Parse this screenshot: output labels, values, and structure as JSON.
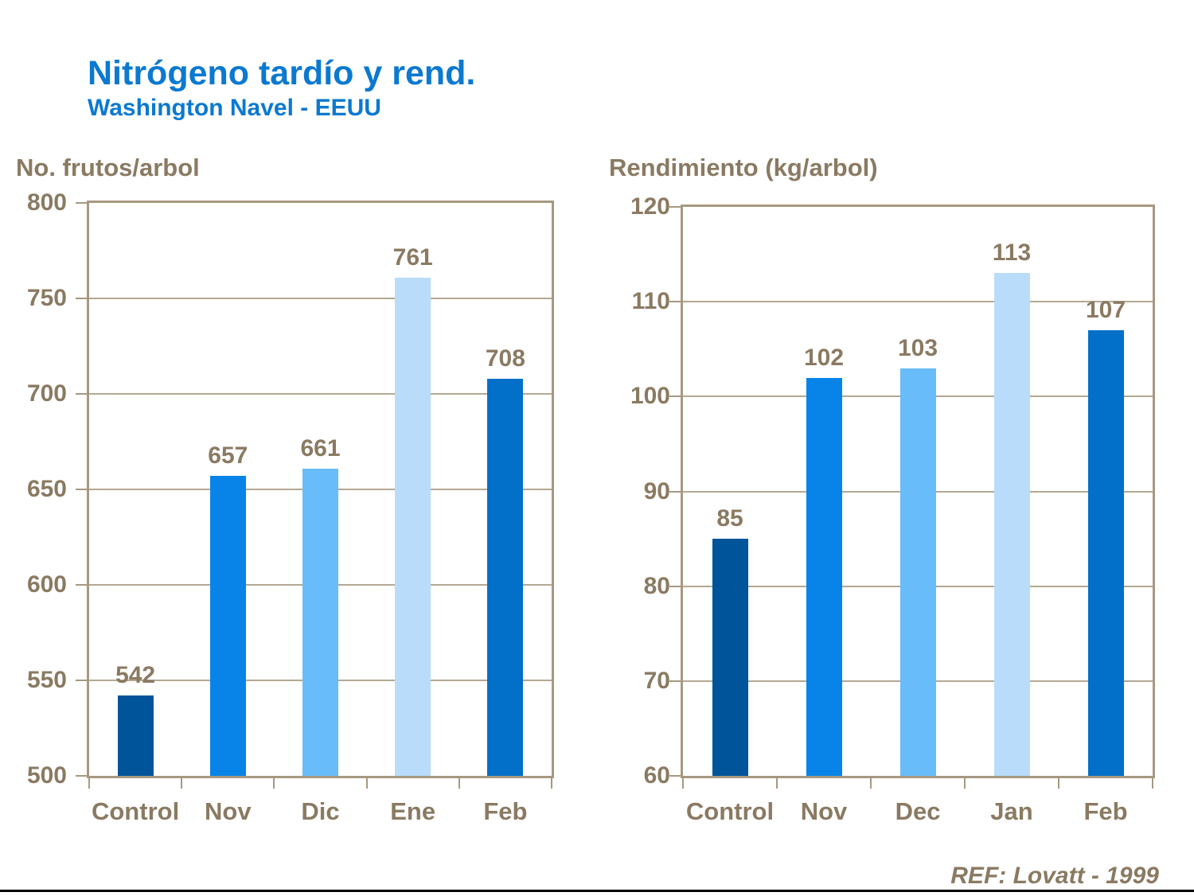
{
  "header": {
    "title": "Nitrógeno tardío y rend.",
    "subtitle": "Washington Navel - EEUU"
  },
  "footer": {
    "ref": "REF: Lovatt - 1999"
  },
  "colors": {
    "title": "#0b79d0",
    "text": "#8a7a62",
    "axis": "#a69980",
    "background": "#ffffff",
    "footer_line": "#000000",
    "bar_control": "#00549a",
    "bar_light_blue": "#68bcfa",
    "bar_pale_blue": "#b9dcfa",
    "bar_bright_blue": "#0884e8",
    "bar_medium_blue": "#0270c8"
  },
  "chart_data": [
    {
      "type": "bar",
      "title": "No. frutos/arbol",
      "categories": [
        "Control",
        "Nov",
        "Dic",
        "Ene",
        "Feb"
      ],
      "values": [
        542,
        657,
        661,
        761,
        708
      ],
      "data_labels": [
        "542",
        "657",
        "661",
        "761",
        "708"
      ],
      "xlabel": "",
      "ylabel": "No. frutos/arbol",
      "ylim": [
        500,
        800
      ],
      "ytick_step": 50,
      "ytick_labels": [
        "500",
        "550",
        "600",
        "650",
        "700",
        "750",
        "800"
      ],
      "grid": true,
      "legend": false,
      "bar_colors": [
        "#00549a",
        "#0884e8",
        "#68bcfa",
        "#b9dcfa",
        "#0270c8"
      ]
    },
    {
      "type": "bar",
      "title": "Rendimiento (kg/arbol)",
      "categories": [
        "Control",
        "Nov",
        "Dec",
        "Jan",
        "Feb"
      ],
      "values": [
        85,
        102,
        103,
        113,
        107
      ],
      "data_labels": [
        "85",
        "102",
        "103",
        "113",
        "107"
      ],
      "xlabel": "",
      "ylabel": "Rendimiento (kg/arbol)",
      "ylim": [
        60,
        120
      ],
      "ytick_step": 10,
      "ytick_labels": [
        "60",
        "70",
        "80",
        "90",
        "100",
        "110",
        "120"
      ],
      "grid": true,
      "legend": false,
      "bar_colors": [
        "#00549a",
        "#0884e8",
        "#68bcfa",
        "#b9dcfa",
        "#0270c8"
      ]
    }
  ]
}
